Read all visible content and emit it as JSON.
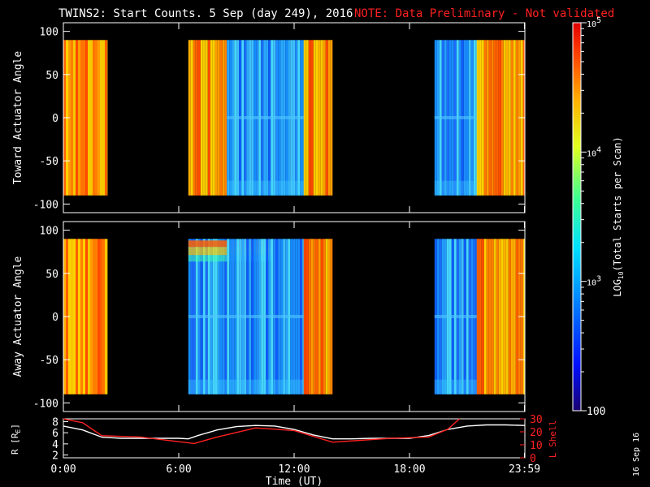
{
  "header": {
    "title": "TWINS2: Start Counts.  5 Sep (day 249), 2016",
    "note": "NOTE: Data Preliminary - Not validated"
  },
  "stamp": "16 Sep 16",
  "colors": {
    "background": "#000000",
    "axes": "#ffffff",
    "note": "#ff2020",
    "lshell": "#ff2020",
    "r_line": "#ffffff"
  },
  "chart_data": [
    {
      "type": "heatmap",
      "panel": "toward",
      "ylabel": "Toward Actuator Angle",
      "ylim": [
        -110,
        110
      ],
      "yticks": [
        100,
        50,
        0,
        -50,
        -100
      ],
      "xlim": [
        0,
        24
      ],
      "data_angle_range": [
        -90,
        90
      ],
      "blocks": [
        {
          "t_start": 0.0,
          "t_end": 2.3,
          "level": "high"
        },
        {
          "t_start": 6.5,
          "t_end": 8.5,
          "level": "high"
        },
        {
          "t_start": 8.5,
          "t_end": 12.5,
          "level": "low"
        },
        {
          "t_start": 12.5,
          "t_end": 14.0,
          "level": "high"
        },
        {
          "t_start": 19.3,
          "t_end": 21.5,
          "level": "low"
        },
        {
          "t_start": 21.5,
          "t_end": 24.0,
          "level": "high"
        }
      ]
    },
    {
      "type": "heatmap",
      "panel": "away",
      "ylabel": "Away Actuator Angle",
      "ylim": [
        -110,
        110
      ],
      "yticks": [
        100,
        50,
        0,
        -50,
        -100
      ],
      "xlim": [
        0,
        24
      ],
      "data_angle_range": [
        -90,
        90
      ],
      "blocks": [
        {
          "t_start": 0.0,
          "t_end": 2.3,
          "level": "high"
        },
        {
          "t_start": 6.5,
          "t_end": 8.5,
          "level": "low"
        },
        {
          "t_start": 8.5,
          "t_end": 12.5,
          "level": "low"
        },
        {
          "t_start": 12.5,
          "t_end": 14.0,
          "level": "high"
        },
        {
          "t_start": 19.3,
          "t_end": 21.5,
          "level": "low"
        },
        {
          "t_start": 21.5,
          "t_end": 24.0,
          "level": "high"
        }
      ]
    },
    {
      "type": "line",
      "panel": "orbit",
      "ylabel": "R [R",
      "ylabel_sub": "E",
      "ylabel_close": "]",
      "ylabel_right": "L Shell",
      "ylim": [
        1.5,
        8.5
      ],
      "yticks": [
        8,
        6,
        4,
        2
      ],
      "ylim_right": [
        0,
        30
      ],
      "yticks_right": [
        30,
        20,
        10,
        0
      ],
      "xlim": [
        0,
        24
      ],
      "xticks": [
        "0:00",
        "6:00",
        "12:00",
        "18:00",
        "23:59"
      ],
      "xtick_values": [
        0,
        6,
        12,
        18,
        23.98
      ],
      "xlabel": "Time (UT)",
      "series": [
        {
          "axis": "left",
          "x": [
            0,
            1,
            2,
            3,
            4,
            5,
            6,
            6.5,
            7,
            8,
            9,
            10,
            11,
            12,
            13,
            14,
            15,
            16,
            17,
            18,
            19,
            20,
            21,
            22,
            23,
            24
          ],
          "y": [
            7.2,
            6.5,
            5.2,
            5.0,
            5.0,
            5.0,
            5.0,
            4.9,
            5.5,
            6.5,
            7.1,
            7.3,
            7.2,
            6.6,
            5.6,
            4.9,
            4.9,
            5.0,
            5.0,
            5.0,
            5.5,
            6.6,
            7.2,
            7.4,
            7.4,
            7.3
          ]
        },
        {
          "axis": "right",
          "x": [
            0,
            1,
            2,
            4,
            6.8,
            8,
            10,
            12,
            14,
            17,
            19,
            20,
            20.6
          ],
          "y": [
            30,
            27,
            17,
            16,
            11,
            16,
            23,
            21,
            12,
            15,
            16,
            22,
            30
          ]
        }
      ]
    },
    {
      "type": "colorbar",
      "label_main": "LOG",
      "label_sub": "10",
      "label_rest": "(Total Starts per Scan)",
      "scale": "log",
      "range": [
        100,
        100000
      ],
      "ticks": [
        {
          "value": 100000,
          "base": "10",
          "exp": "5"
        },
        {
          "value": 10000,
          "base": "10",
          "exp": "4"
        },
        {
          "value": 1000,
          "base": "10",
          "exp": "3"
        },
        {
          "value": 100,
          "base": "100",
          "exp": ""
        }
      ]
    }
  ]
}
